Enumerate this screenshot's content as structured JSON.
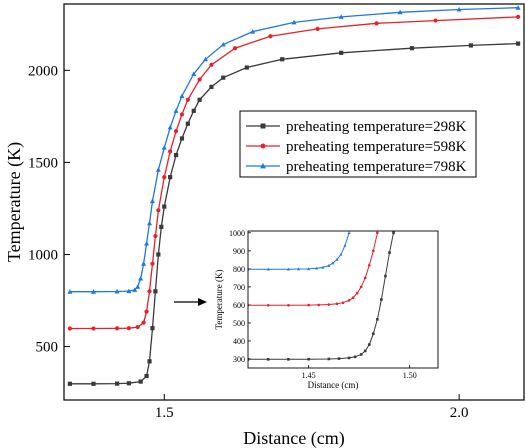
{
  "chart_data": [
    {
      "type": "line",
      "xlabel": "Distance (cm)",
      "ylabel": "Temperature (K)",
      "xlim": [
        1.33,
        2.11
      ],
      "ylim": [
        210,
        2360
      ],
      "x_ticks": [
        1.5,
        2.0
      ],
      "x_tick_labels": [
        "1.5",
        "2.0"
      ],
      "y_ticks": [
        500,
        1000,
        1500,
        2000
      ],
      "y_tick_labels": [
        "500",
        "1000",
        "1500",
        "2000"
      ],
      "grid": false,
      "legend_position": "middle-right",
      "series": [
        {
          "name": "preheating temperature=298K",
          "color": "#3a3a3a",
          "marker": "square",
          "x": [
            1.34,
            1.38,
            1.42,
            1.44,
            1.46,
            1.47,
            1.475,
            1.48,
            1.485,
            1.49,
            1.495,
            1.5,
            1.51,
            1.52,
            1.53,
            1.54,
            1.55,
            1.56,
            1.58,
            1.6,
            1.64,
            1.7,
            1.8,
            1.92,
            2.02,
            2.1
          ],
          "y": [
            298,
            298,
            299,
            301,
            310,
            340,
            420,
            600,
            800,
            1000,
            1150,
            1260,
            1420,
            1540,
            1630,
            1710,
            1780,
            1840,
            1910,
            1960,
            2015,
            2060,
            2095,
            2120,
            2135,
            2145
          ]
        },
        {
          "name": "preheating temperature=598K",
          "color": "#e8202a",
          "marker": "circle",
          "x": [
            1.34,
            1.38,
            1.42,
            1.44,
            1.455,
            1.465,
            1.47,
            1.475,
            1.48,
            1.485,
            1.49,
            1.5,
            1.51,
            1.52,
            1.53,
            1.54,
            1.56,
            1.58,
            1.62,
            1.68,
            1.76,
            1.86,
            1.96,
            2.1
          ],
          "y": [
            598,
            598,
            599,
            600,
            606,
            630,
            690,
            800,
            950,
            1100,
            1240,
            1420,
            1560,
            1670,
            1760,
            1840,
            1950,
            2030,
            2120,
            2185,
            2225,
            2255,
            2270,
            2290
          ]
        },
        {
          "name": "preheating temperature=798K",
          "color": "#1f77e0",
          "marker": "triangle",
          "x": [
            1.34,
            1.38,
            1.42,
            1.44,
            1.45,
            1.455,
            1.46,
            1.465,
            1.47,
            1.475,
            1.48,
            1.49,
            1.5,
            1.51,
            1.52,
            1.53,
            1.55,
            1.57,
            1.6,
            1.65,
            1.72,
            1.8,
            1.9,
            2.0,
            2.1
          ],
          "y": [
            798,
            798,
            799,
            801,
            808,
            825,
            870,
            950,
            1060,
            1170,
            1290,
            1460,
            1580,
            1690,
            1780,
            1860,
            1980,
            2060,
            2140,
            2210,
            2260,
            2290,
            2315,
            2330,
            2340
          ]
        }
      ]
    },
    {
      "type": "line",
      "xlabel": "Distance (cm)",
      "ylabel": "Temperature (K)",
      "xlim": [
        1.42,
        1.514
      ],
      "ylim": [
        250,
        1010
      ],
      "x_ticks": [
        1.45,
        1.5
      ],
      "x_tick_labels": [
        "1.45",
        "1.50"
      ],
      "y_ticks": [
        300,
        400,
        500,
        600,
        700,
        800,
        900,
        1000
      ],
      "y_tick_labels": [
        "300",
        "400",
        "500",
        "600",
        "700",
        "800",
        "900",
        "1000"
      ],
      "grid": false,
      "series": [
        {
          "name": "preheating temperature=298K",
          "color": "#3a3a3a",
          "marker": "square",
          "x": [
            1.42,
            1.43,
            1.44,
            1.45,
            1.46,
            1.465,
            1.47,
            1.473,
            1.476,
            1.478,
            1.48,
            1.482,
            1.484,
            1.486,
            1.488,
            1.49,
            1.492
          ],
          "y": [
            298,
            298,
            298,
            299,
            300,
            302,
            306,
            312,
            325,
            345,
            380,
            440,
            520,
            630,
            760,
            890,
            1000
          ]
        },
        {
          "name": "preheating temperature=598K",
          "color": "#e8202a",
          "marker": "circle",
          "x": [
            1.42,
            1.43,
            1.44,
            1.45,
            1.455,
            1.46,
            1.464,
            1.467,
            1.47,
            1.472,
            1.474,
            1.476,
            1.478,
            1.48,
            1.482,
            1.484
          ],
          "y": [
            598,
            598,
            598,
            599,
            600,
            602,
            606,
            612,
            625,
            640,
            665,
            700,
            750,
            820,
            900,
            1000
          ]
        },
        {
          "name": "preheating temperature=798K",
          "color": "#1f77e0",
          "marker": "triangle",
          "x": [
            1.42,
            1.43,
            1.44,
            1.445,
            1.45,
            1.454,
            1.457,
            1.46,
            1.462,
            1.464,
            1.466,
            1.468,
            1.47
          ],
          "y": [
            798,
            798,
            798,
            799,
            800,
            803,
            808,
            818,
            832,
            852,
            880,
            930,
            1000
          ]
        }
      ]
    }
  ]
}
